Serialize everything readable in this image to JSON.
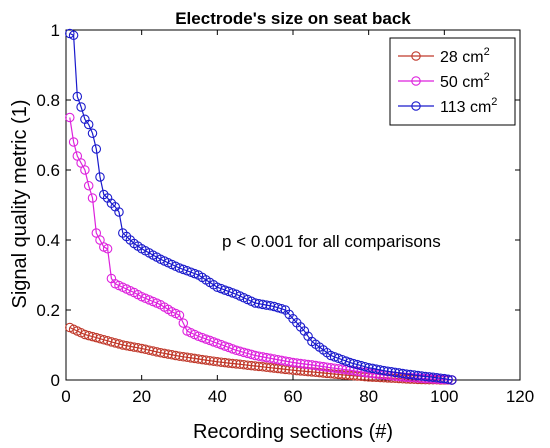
{
  "chart_data": {
    "type": "line",
    "title": "Electrode's size on seat back",
    "xlabel": "Recording sections (#)",
    "ylabel": "Signal quality metric (1)",
    "xlim": [
      0,
      120
    ],
    "ylim": [
      0,
      1
    ],
    "xticks": [
      0,
      20,
      40,
      60,
      80,
      100,
      120
    ],
    "yticks": [
      0,
      0.2,
      0.4,
      0.6,
      0.8,
      1
    ],
    "xtick_labels": [
      "0",
      "20",
      "40",
      "60",
      "80",
      "100",
      "120"
    ],
    "ytick_labels": [
      "0",
      "0.2",
      "0.4",
      "0.6",
      "0.8",
      "1"
    ],
    "grid": false,
    "legend_position": "top-right",
    "annotation": "p < 0.001 for all comparisons",
    "series": [
      {
        "name": "28 cm",
        "name_sup": "2",
        "color": "#c0392b",
        "knots": [
          [
            1,
            0.15
          ],
          [
            2,
            0.145
          ],
          [
            5,
            0.13
          ],
          [
            10,
            0.115
          ],
          [
            15,
            0.1
          ],
          [
            20,
            0.09
          ],
          [
            25,
            0.078
          ],
          [
            30,
            0.068
          ],
          [
            35,
            0.06
          ],
          [
            40,
            0.052
          ],
          [
            45,
            0.046
          ],
          [
            50,
            0.04
          ],
          [
            55,
            0.034
          ],
          [
            60,
            0.028
          ],
          [
            65,
            0.023
          ],
          [
            70,
            0.018
          ],
          [
            75,
            0.013
          ],
          [
            80,
            0.009
          ],
          [
            85,
            0.006
          ],
          [
            90,
            0.003
          ],
          [
            95,
            0.001
          ],
          [
            102,
            0.0
          ]
        ]
      },
      {
        "name": "50 cm",
        "name_sup": "2",
        "color": "#dd22dd",
        "knots": [
          [
            1,
            0.75
          ],
          [
            2,
            0.68
          ],
          [
            3,
            0.64
          ],
          [
            4,
            0.62
          ],
          [
            5,
            0.6
          ],
          [
            6,
            0.555
          ],
          [
            7,
            0.52
          ],
          [
            8,
            0.42
          ],
          [
            9,
            0.4
          ],
          [
            10,
            0.38
          ],
          [
            11,
            0.375
          ],
          [
            12,
            0.29
          ],
          [
            13,
            0.275
          ],
          [
            15,
            0.265
          ],
          [
            18,
            0.25
          ],
          [
            20,
            0.238
          ],
          [
            25,
            0.215
          ],
          [
            28,
            0.195
          ],
          [
            30,
            0.185
          ],
          [
            32,
            0.14
          ],
          [
            35,
            0.125
          ],
          [
            40,
            0.105
          ],
          [
            45,
            0.085
          ],
          [
            50,
            0.07
          ],
          [
            55,
            0.06
          ],
          [
            60,
            0.05
          ],
          [
            65,
            0.043
          ],
          [
            70,
            0.035
          ],
          [
            75,
            0.028
          ],
          [
            80,
            0.02
          ],
          [
            85,
            0.013
          ],
          [
            90,
            0.008
          ],
          [
            95,
            0.004
          ],
          [
            102,
            0.0
          ]
        ]
      },
      {
        "name": "113 cm",
        "name_sup": "2",
        "color": "#1a1acc",
        "knots": [
          [
            1,
            0.99
          ],
          [
            2,
            0.985
          ],
          [
            3,
            0.81
          ],
          [
            4,
            0.78
          ],
          [
            5,
            0.745
          ],
          [
            6,
            0.73
          ],
          [
            7,
            0.705
          ],
          [
            8,
            0.66
          ],
          [
            9,
            0.58
          ],
          [
            10,
            0.53
          ],
          [
            11,
            0.52
          ],
          [
            12,
            0.505
          ],
          [
            13,
            0.495
          ],
          [
            14,
            0.48
          ],
          [
            15,
            0.42
          ],
          [
            18,
            0.39
          ],
          [
            20,
            0.375
          ],
          [
            25,
            0.345
          ],
          [
            30,
            0.32
          ],
          [
            35,
            0.3
          ],
          [
            40,
            0.265
          ],
          [
            45,
            0.245
          ],
          [
            50,
            0.22
          ],
          [
            55,
            0.21
          ],
          [
            58,
            0.2
          ],
          [
            60,
            0.175
          ],
          [
            63,
            0.14
          ],
          [
            65,
            0.11
          ],
          [
            70,
            0.07
          ],
          [
            75,
            0.05
          ],
          [
            80,
            0.035
          ],
          [
            85,
            0.025
          ],
          [
            90,
            0.017
          ],
          [
            95,
            0.01
          ],
          [
            100,
            0.004
          ],
          [
            102,
            0.0
          ]
        ]
      }
    ]
  }
}
